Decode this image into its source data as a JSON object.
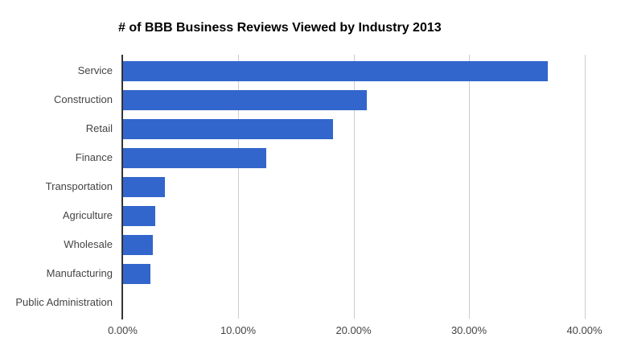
{
  "chart_data": {
    "type": "bar",
    "orientation": "horizontal",
    "title": "# of BBB Business Reviews Viewed by Industry 2013",
    "categories": [
      "Service",
      "Construction",
      "Retail",
      "Finance",
      "Transportation",
      "Agriculture",
      "Wholesale",
      "Manufacturing",
      "Public Administration"
    ],
    "values": [
      36.8,
      21.1,
      18.2,
      12.4,
      3.6,
      2.8,
      2.6,
      2.4,
      0.0
    ],
    "unit": "%",
    "xlabel": "",
    "ylabel": "",
    "xlim": [
      0,
      40
    ],
    "x_ticks": [
      "0.00%",
      "10.00%",
      "20.00%",
      "30.00%",
      "40.00%"
    ],
    "x_tick_values": [
      0,
      10,
      20,
      30,
      40
    ],
    "grid": true,
    "legend": "none",
    "colors": {
      "bar": "#3366cc",
      "grid": "#cccccc",
      "axis_line": "#333333",
      "labels": "#444444",
      "title": "#000000",
      "background": "#ffffff"
    }
  }
}
